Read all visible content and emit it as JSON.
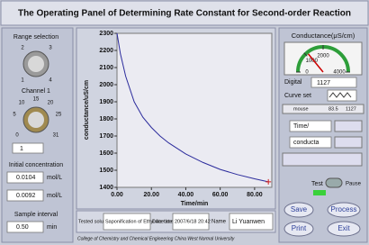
{
  "title": "The Operating Panel of Determining Rate Constant for Second-order Reaction",
  "range_selection": {
    "label": "Range selection",
    "scale": [
      "2",
      "3",
      "1",
      "4"
    ]
  },
  "channel": {
    "label": "Channel 1",
    "scale": [
      "10",
      "15",
      "20",
      "5",
      "25",
      "0",
      "31"
    ],
    "value": "1"
  },
  "initial_concentration": {
    "label": "Initial concentration",
    "fields": [
      {
        "value": "0.0104",
        "unit": "mol/L"
      },
      {
        "value": "0.0092",
        "unit": "mol/L"
      }
    ]
  },
  "sample_interval": {
    "label": "Sample interval",
    "value": "0.50",
    "unit": "min"
  },
  "graph": {
    "type": "line",
    "x_label": "Time/min",
    "y_label": "conductance/uS/cm",
    "xlim": [
      0,
      90
    ],
    "ylim": [
      1400,
      2300
    ],
    "xticks": [
      {
        "value": 0,
        "label": "0.00"
      },
      {
        "value": 20,
        "label": "20.00"
      },
      {
        "value": 40,
        "label": "40.00"
      },
      {
        "value": 60,
        "label": "60.00"
      },
      {
        "value": 80,
        "label": "80.00"
      }
    ],
    "yticks": [
      1400,
      1500,
      1600,
      1700,
      1800,
      1900,
      2000,
      2100,
      2200,
      2300
    ],
    "x": [
      0,
      2,
      5,
      10,
      15,
      20,
      25,
      30,
      40,
      50,
      60,
      70,
      80,
      88
    ],
    "values": [
      2300,
      2180,
      2050,
      1900,
      1810,
      1750,
      1700,
      1660,
      1595,
      1545,
      1505,
      1475,
      1450,
      1432
    ],
    "color": "#2b2b9c",
    "cursor_color": "#d02020"
  },
  "info": {
    "solution_label": "Tested solution",
    "solution": "Saponification of Ethyl Acetate",
    "date_label": "Date time",
    "date": "2007/6/18 20:42",
    "name_label": "Name",
    "name": "Li Yuanwen"
  },
  "footer": "College of Chemistry and Chemical Engineering China West Normal University",
  "conductance": {
    "label": "Conductance(μS/cm)",
    "gauge_min": 0,
    "gauge_max": 4000,
    "gauge_ticks": [
      0,
      1000,
      2000,
      4000
    ],
    "digital_label": "Digital",
    "digital": 1127
  },
  "curve_set": {
    "label": "Curve set",
    "legend": "mouse",
    "cursor": [
      "83.5",
      "1127"
    ]
  },
  "axis_select": [
    "Time/",
    "conducta"
  ],
  "test": {
    "label": "Test",
    "pause": "Pause"
  },
  "buttons": [
    "Save",
    "Process",
    "Print",
    "Exit"
  ]
}
